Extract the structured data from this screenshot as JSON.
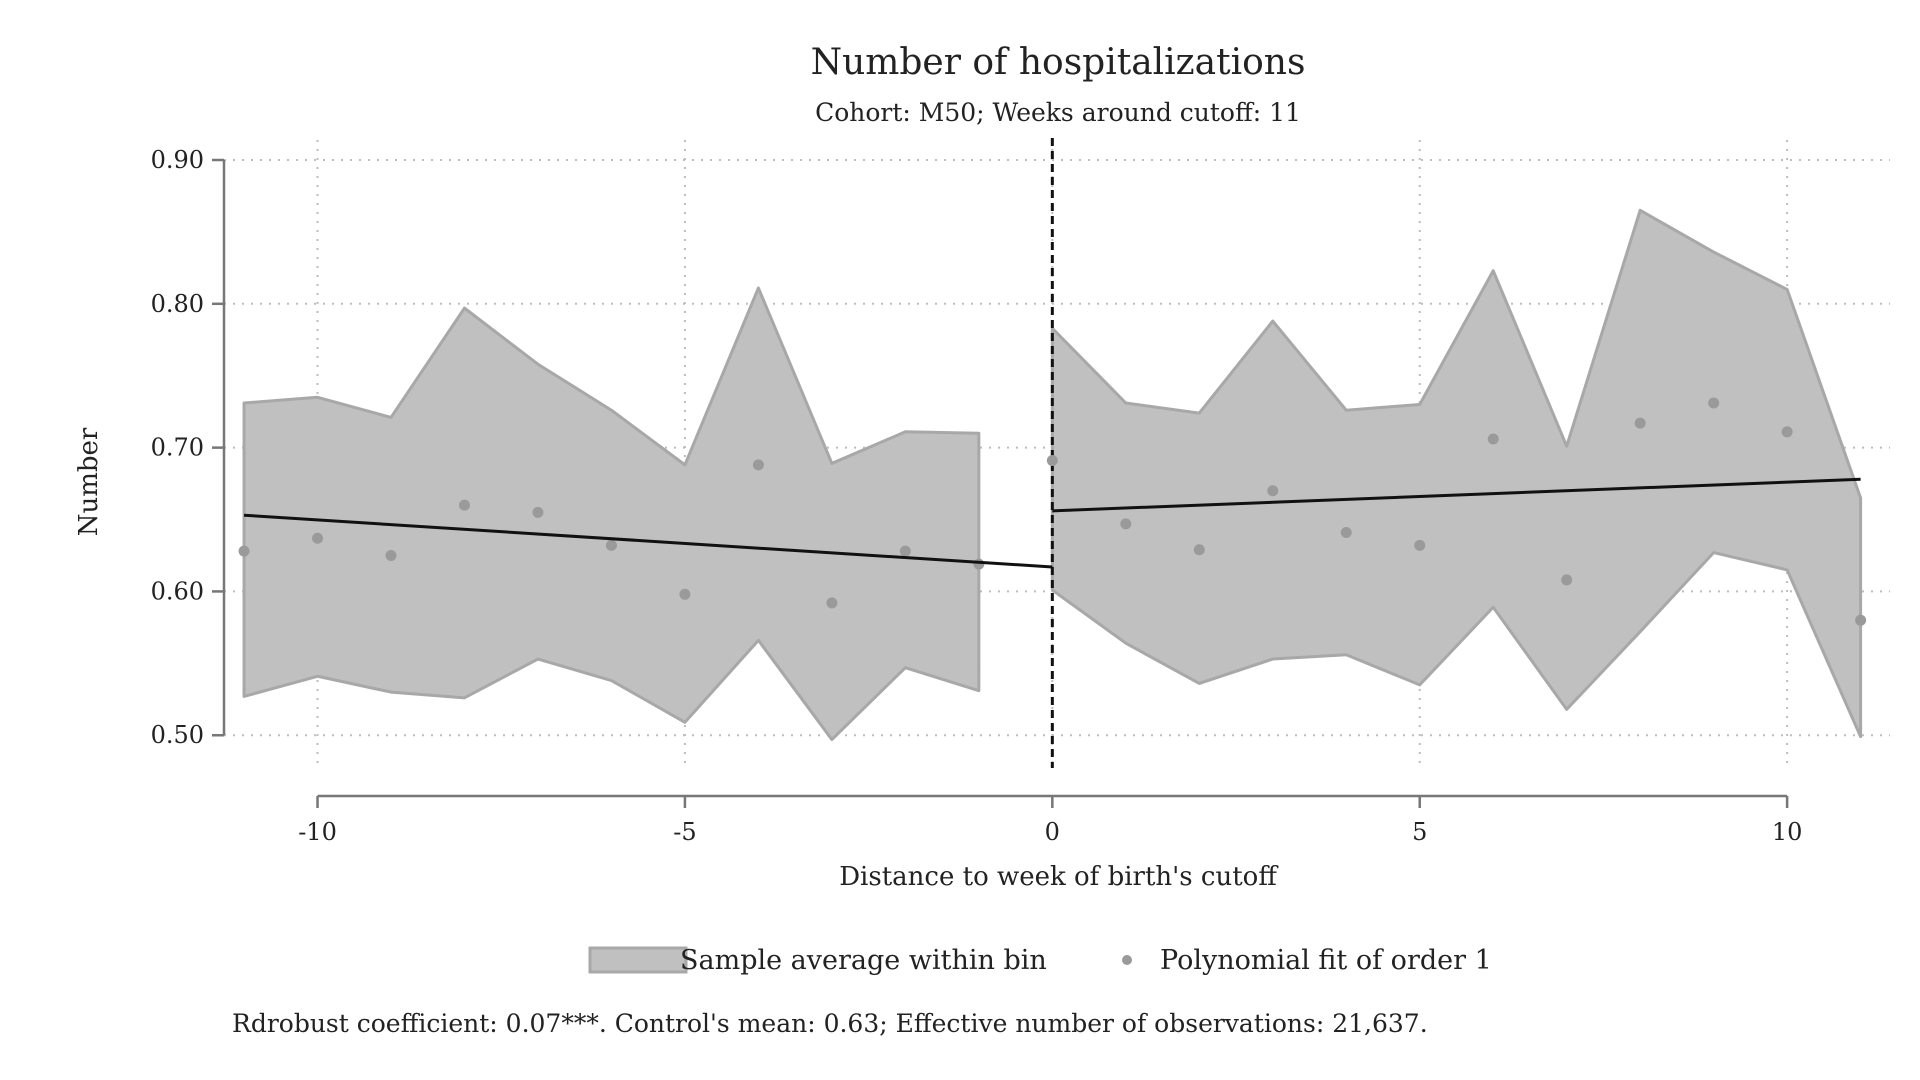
{
  "chart_data": {
    "type": "scatter",
    "title": "Number of hospitalizations",
    "subtitle": "Cohort: M50; Weeks around cutoff: 11",
    "xlabel": "Distance to week of birth's cutoff",
    "ylabel": "Number",
    "xlim": [
      -11.3,
      11.4
    ],
    "ylim": [
      0.48,
      0.9
    ],
    "x_ticks": [
      -10,
      -5,
      0,
      5,
      10
    ],
    "x_tick_labels": [
      "-10",
      "-5",
      "0",
      "5",
      "10"
    ],
    "y_ticks": [
      0.5,
      0.6,
      0.7,
      0.8,
      0.9
    ],
    "y_tick_labels": [
      "0.50",
      "0.60",
      "0.70",
      "0.80",
      "0.90"
    ],
    "grid": true,
    "cutoff_x": 0,
    "legend_position": "bottom",
    "series": [
      {
        "name": "Sample average within bin",
        "kind": "band",
        "color": "#c0c0c0",
        "edge_color": "#a8a8a8",
        "segments": [
          {
            "x": [
              -11,
              -10,
              -9,
              -8,
              -7,
              -6,
              -5,
              -4,
              -3,
              -2,
              -1
            ],
            "upper": [
              0.731,
              0.735,
              0.721,
              0.797,
              0.758,
              0.726,
              0.688,
              0.811,
              0.689,
              0.711,
              0.71
            ],
            "lower": [
              0.527,
              0.541,
              0.53,
              0.526,
              0.553,
              0.538,
              0.509,
              0.566,
              0.497,
              0.547,
              0.531
            ]
          },
          {
            "x": [
              0,
              1,
              2,
              3,
              4,
              5,
              6,
              7,
              8,
              9,
              10,
              11
            ],
            "upper": [
              0.783,
              0.731,
              0.724,
              0.788,
              0.726,
              0.73,
              0.823,
              0.701,
              0.865,
              0.836,
              0.81,
              0.665
            ],
            "lower": [
              0.601,
              0.564,
              0.536,
              0.553,
              0.556,
              0.535,
              0.589,
              0.518,
              0.572,
              0.627,
              0.615,
              0.499
            ]
          }
        ]
      },
      {
        "name": "Polynomial fit of order 1",
        "kind": "points",
        "color": "#9a9a9a",
        "x": [
          -11,
          -10,
          -9,
          -8,
          -7,
          -6,
          -5,
          -4,
          -3,
          -2,
          -1,
          0,
          1,
          2,
          3,
          4,
          5,
          6,
          7,
          8,
          9,
          10,
          11
        ],
        "y": [
          0.628,
          0.637,
          0.625,
          0.66,
          0.655,
          0.632,
          0.598,
          0.688,
          0.592,
          0.628,
          0.619,
          0.691,
          0.647,
          0.629,
          0.67,
          0.641,
          0.632,
          0.706,
          0.608,
          0.717,
          0.731,
          0.711,
          0.58
        ]
      },
      {
        "kind": "fit-lines",
        "color": "#111111",
        "segments": [
          {
            "x": [
              -11,
              0
            ],
            "y": [
              0.653,
              0.617
            ]
          },
          {
            "x": [
              0,
              11
            ],
            "y": [
              0.656,
              0.678
            ]
          }
        ]
      }
    ],
    "note": "Rdrobust coefficient: 0.07***. Control's mean: 0.63; Effective number of observations: 21,637."
  }
}
